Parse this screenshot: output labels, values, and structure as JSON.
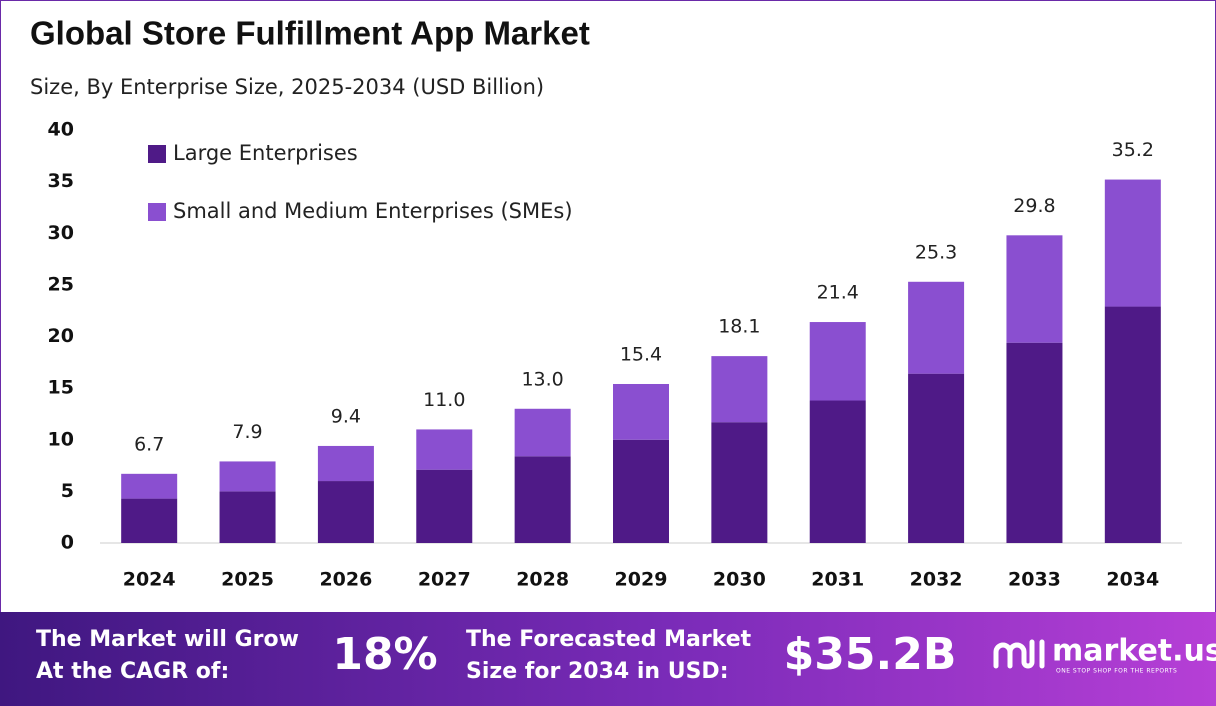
{
  "chart_data": {
    "type": "bar",
    "stacked": true,
    "title": "Global Store Fulfillment App Market",
    "subtitle": "Size, By Enterprise Size, 2025-2034 (USD Billion)",
    "categories": [
      "2024",
      "2025",
      "2026",
      "2027",
      "2028",
      "2029",
      "2030",
      "2031",
      "2032",
      "2033",
      "2034"
    ],
    "series": [
      {
        "name": "Large Enterprises",
        "color": "#4f1a87",
        "values": [
          4.3,
          5.0,
          6.0,
          7.1,
          8.4,
          10.0,
          11.7,
          13.8,
          16.4,
          19.4,
          22.9
        ]
      },
      {
        "name": "Small and Medium Enterprises (SMEs)",
        "color": "#8a4fd0",
        "values": [
          2.4,
          2.9,
          3.4,
          3.9,
          4.6,
          5.4,
          6.4,
          7.6,
          8.9,
          10.4,
          12.3
        ]
      }
    ],
    "totals": [
      6.7,
      7.9,
      9.4,
      11.0,
      13.0,
      15.4,
      18.1,
      21.4,
      25.3,
      29.8,
      35.2
    ],
    "total_labels": [
      "6.7",
      "7.9",
      "9.4",
      "11.0",
      "13.0",
      "15.4",
      "18.1",
      "21.4",
      "25.3",
      "29.8",
      "35.2"
    ],
    "ylim": [
      0,
      40
    ],
    "yticks": [
      0,
      5,
      10,
      15,
      20,
      25,
      30,
      35,
      40
    ],
    "grid": false,
    "legend": "upper left"
  },
  "footer": {
    "cagr_label": [
      "The Market will Grow",
      "At the CAGR of:"
    ],
    "cagr_value": "18%",
    "forecast_label": [
      "The Forecasted Market",
      "Size for 2034 in USD:"
    ],
    "forecast_value": "$35.2B",
    "brand": "market.us",
    "tagline": "ONE STOP SHOP FOR THE REPORTS"
  }
}
